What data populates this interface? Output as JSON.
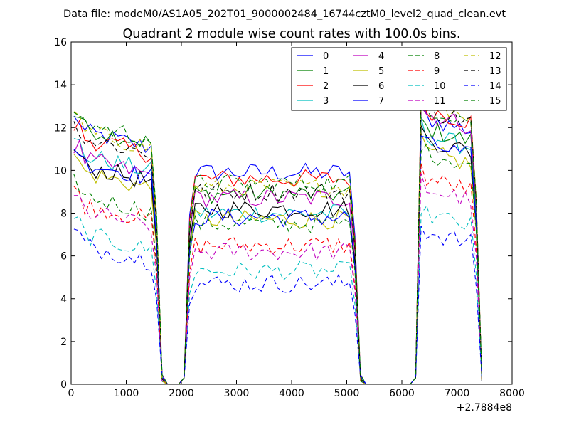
{
  "figure": {
    "suptitle": "Data file: modeM0/AS1A05_202T01_9000002484_16744cztM0_level2_quad_clean.evt"
  },
  "chart_data": {
    "type": "line",
    "title": "Quadrant 2 module wise count rates with 100.0s bins.",
    "xlabel": "",
    "ylabel": "",
    "x_offset_label": "+2.7884e8",
    "xlim": [
      0,
      8000
    ],
    "ylim": [
      0,
      16
    ],
    "x_ticks": [
      0,
      1000,
      2000,
      3000,
      4000,
      5000,
      6000,
      7000,
      8000
    ],
    "y_ticks": [
      0,
      2,
      4,
      6,
      8,
      10,
      12,
      14,
      16
    ],
    "grid": false,
    "legend_position": "top-right",
    "segments": [
      {
        "start": 50,
        "count": 15
      },
      {
        "start": 2150,
        "count": 30
      },
      {
        "start": 6350,
        "count": 10
      }
    ],
    "series": [
      {
        "name": "0",
        "color": "#0000ff",
        "dash": "solid",
        "levels": [
          11.0,
          9.9,
          11.8
        ]
      },
      {
        "name": "1",
        "color": "#008000",
        "dash": "solid",
        "levels": [
          11.2,
          8.9,
          11.3
        ]
      },
      {
        "name": "2",
        "color": "#ff0000",
        "dash": "solid",
        "levels": [
          10.7,
          9.6,
          12.2
        ]
      },
      {
        "name": "3",
        "color": "#00bfbf",
        "dash": "solid",
        "levels": [
          9.9,
          8.0,
          11.0
        ]
      },
      {
        "name": "4",
        "color": "#bf00bf",
        "dash": "solid",
        "levels": [
          9.7,
          8.7,
          12.0
        ]
      },
      {
        "name": "5",
        "color": "#bfbf00",
        "dash": "solid",
        "levels": [
          9.1,
          7.7,
          10.2
        ]
      },
      {
        "name": "6",
        "color": "#000000",
        "dash": "solid",
        "levels": [
          9.4,
          8.2,
          10.8
        ]
      },
      {
        "name": "7",
        "color": "#0000ff",
        "dash": "solid",
        "levels": [
          9.6,
          7.8,
          10.6
        ]
      },
      {
        "name": "8",
        "color": "#008000",
        "dash": "dashed",
        "levels": [
          8.0,
          7.5,
          10.2
        ]
      },
      {
        "name": "9",
        "color": "#ff0000",
        "dash": "dashed",
        "levels": [
          7.6,
          6.5,
          9.0
        ]
      },
      {
        "name": "10",
        "color": "#00bfbf",
        "dash": "dashed",
        "levels": [
          6.2,
          5.3,
          7.3
        ]
      },
      {
        "name": "11",
        "color": "#bf00bf",
        "dash": "dashed",
        "levels": [
          7.3,
          6.2,
          8.5
        ]
      },
      {
        "name": "12",
        "color": "#bfbf00",
        "dash": "dashed",
        "levels": [
          11.0,
          9.2,
          12.5
        ]
      },
      {
        "name": "13",
        "color": "#000000",
        "dash": "dashed",
        "levels": [
          10.7,
          9.0,
          12.2
        ]
      },
      {
        "name": "14",
        "color": "#0000ff",
        "dash": "dashed",
        "levels": [
          5.7,
          4.7,
          6.5
        ]
      },
      {
        "name": "15",
        "color": "#008000",
        "dash": "dashed",
        "levels": [
          11.4,
          9.4,
          12.3
        ]
      }
    ]
  }
}
